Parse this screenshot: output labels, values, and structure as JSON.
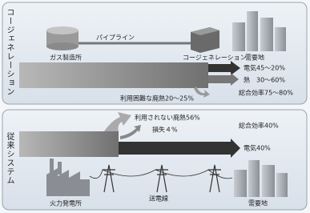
{
  "cogeneration": {
    "label": "コージェネレーション",
    "gas_plant": "ガス製造所",
    "pipeline": "パイプライン",
    "unit": "コージェネレーション",
    "demand": "需要地",
    "electricity": "電気45～20%",
    "heat": "熱　30～60%",
    "efficiency": "総合効率75～80%",
    "waste_heat": "利用困難な廃熱20～25%"
  },
  "conventional": {
    "label": "従来システム",
    "unused_heat": "利用されない廃熱56%",
    "loss": "損失４%",
    "efficiency": "総合効率40%",
    "electricity": "電気40%",
    "power_plant": "火力発電所",
    "transmission": "送電線",
    "demand": "需要地"
  }
}
